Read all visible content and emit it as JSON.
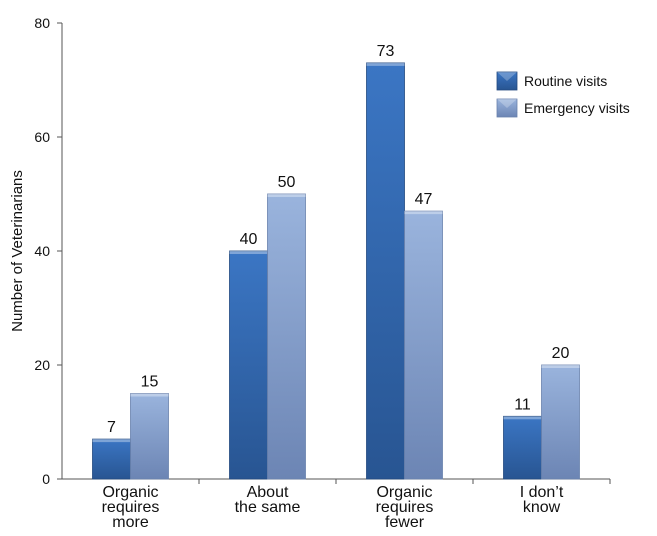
{
  "chart_data": {
    "type": "bar",
    "title": "",
    "xlabel": "",
    "ylabel": "Number of Veterinarians",
    "ylim": [
      0,
      80
    ],
    "yticks": [
      0,
      20,
      40,
      60,
      80
    ],
    "categories": [
      [
        "Organic",
        "requires",
        "more"
      ],
      [
        "About",
        "the same"
      ],
      [
        "Organic",
        "requires",
        "fewer"
      ],
      [
        "I don’t",
        "know"
      ]
    ],
    "series": [
      {
        "name": "Routine visits",
        "values": [
          7,
          40,
          73,
          11
        ],
        "color": "#3a72be"
      },
      {
        "name": "Emergency visits",
        "values": [
          15,
          50,
          47,
          20
        ],
        "color": "#94afd9"
      }
    ],
    "data_labels": true,
    "grid": false,
    "legend": "top-right"
  }
}
